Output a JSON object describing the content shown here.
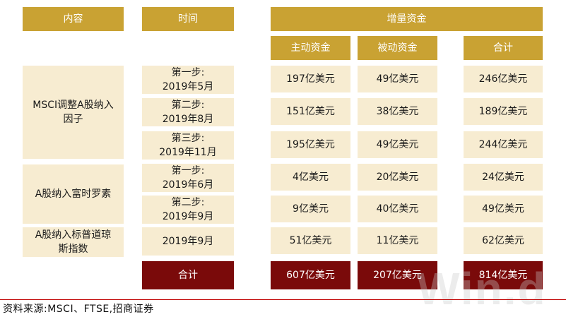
{
  "headers": {
    "content": "内容",
    "time": "时间",
    "increment": "增量资金",
    "active": "主动资金",
    "passive": "被动资金",
    "total": "合计"
  },
  "groups": [
    {
      "label": "MSCI调整A股纳入因子"
    },
    {
      "label": "A股纳入富时罗素"
    },
    {
      "label": "A股纳入标普道琼斯指数"
    }
  ],
  "rows": [
    {
      "time_line1": "第一步:",
      "time_line2": "2019年5月",
      "active": "197亿美元",
      "passive": "49亿美元",
      "total": "246亿美元"
    },
    {
      "time_line1": "第二步:",
      "time_line2": "2019年8月",
      "active": "151亿美元",
      "passive": "38亿美元",
      "total": "189亿美元"
    },
    {
      "time_line1": "第三步:",
      "time_line2": "2019年11月",
      "active": "195亿美元",
      "passive": "49亿美元",
      "total": "244亿美元"
    },
    {
      "time_line1": "第一步:",
      "time_line2": "2019年6月",
      "active": "4亿美元",
      "passive": "20亿美元",
      "total": "24亿美元"
    },
    {
      "time_line1": "第二步:",
      "time_line2": "2019年9月",
      "active": "9亿美元",
      "passive": "40亿美元",
      "total": "49亿美元"
    },
    {
      "time_line1": "",
      "time_line2": "2019年9月",
      "active": "51亿美元",
      "passive": "11亿美元",
      "total": "62亿美元"
    }
  ],
  "summary": {
    "label": "合计",
    "active": "607亿美元",
    "passive": "207亿美元",
    "total": "814亿美元"
  },
  "footer": {
    "source": "资料来源:MSCI、FTSE,招商证券"
  },
  "watermark": "Win.d",
  "colors": {
    "header_gold": "#c9a233",
    "cell_cream": "#f7ecd1",
    "total_maroon": "#7a0a0a",
    "rule_red": "#c00000"
  }
}
